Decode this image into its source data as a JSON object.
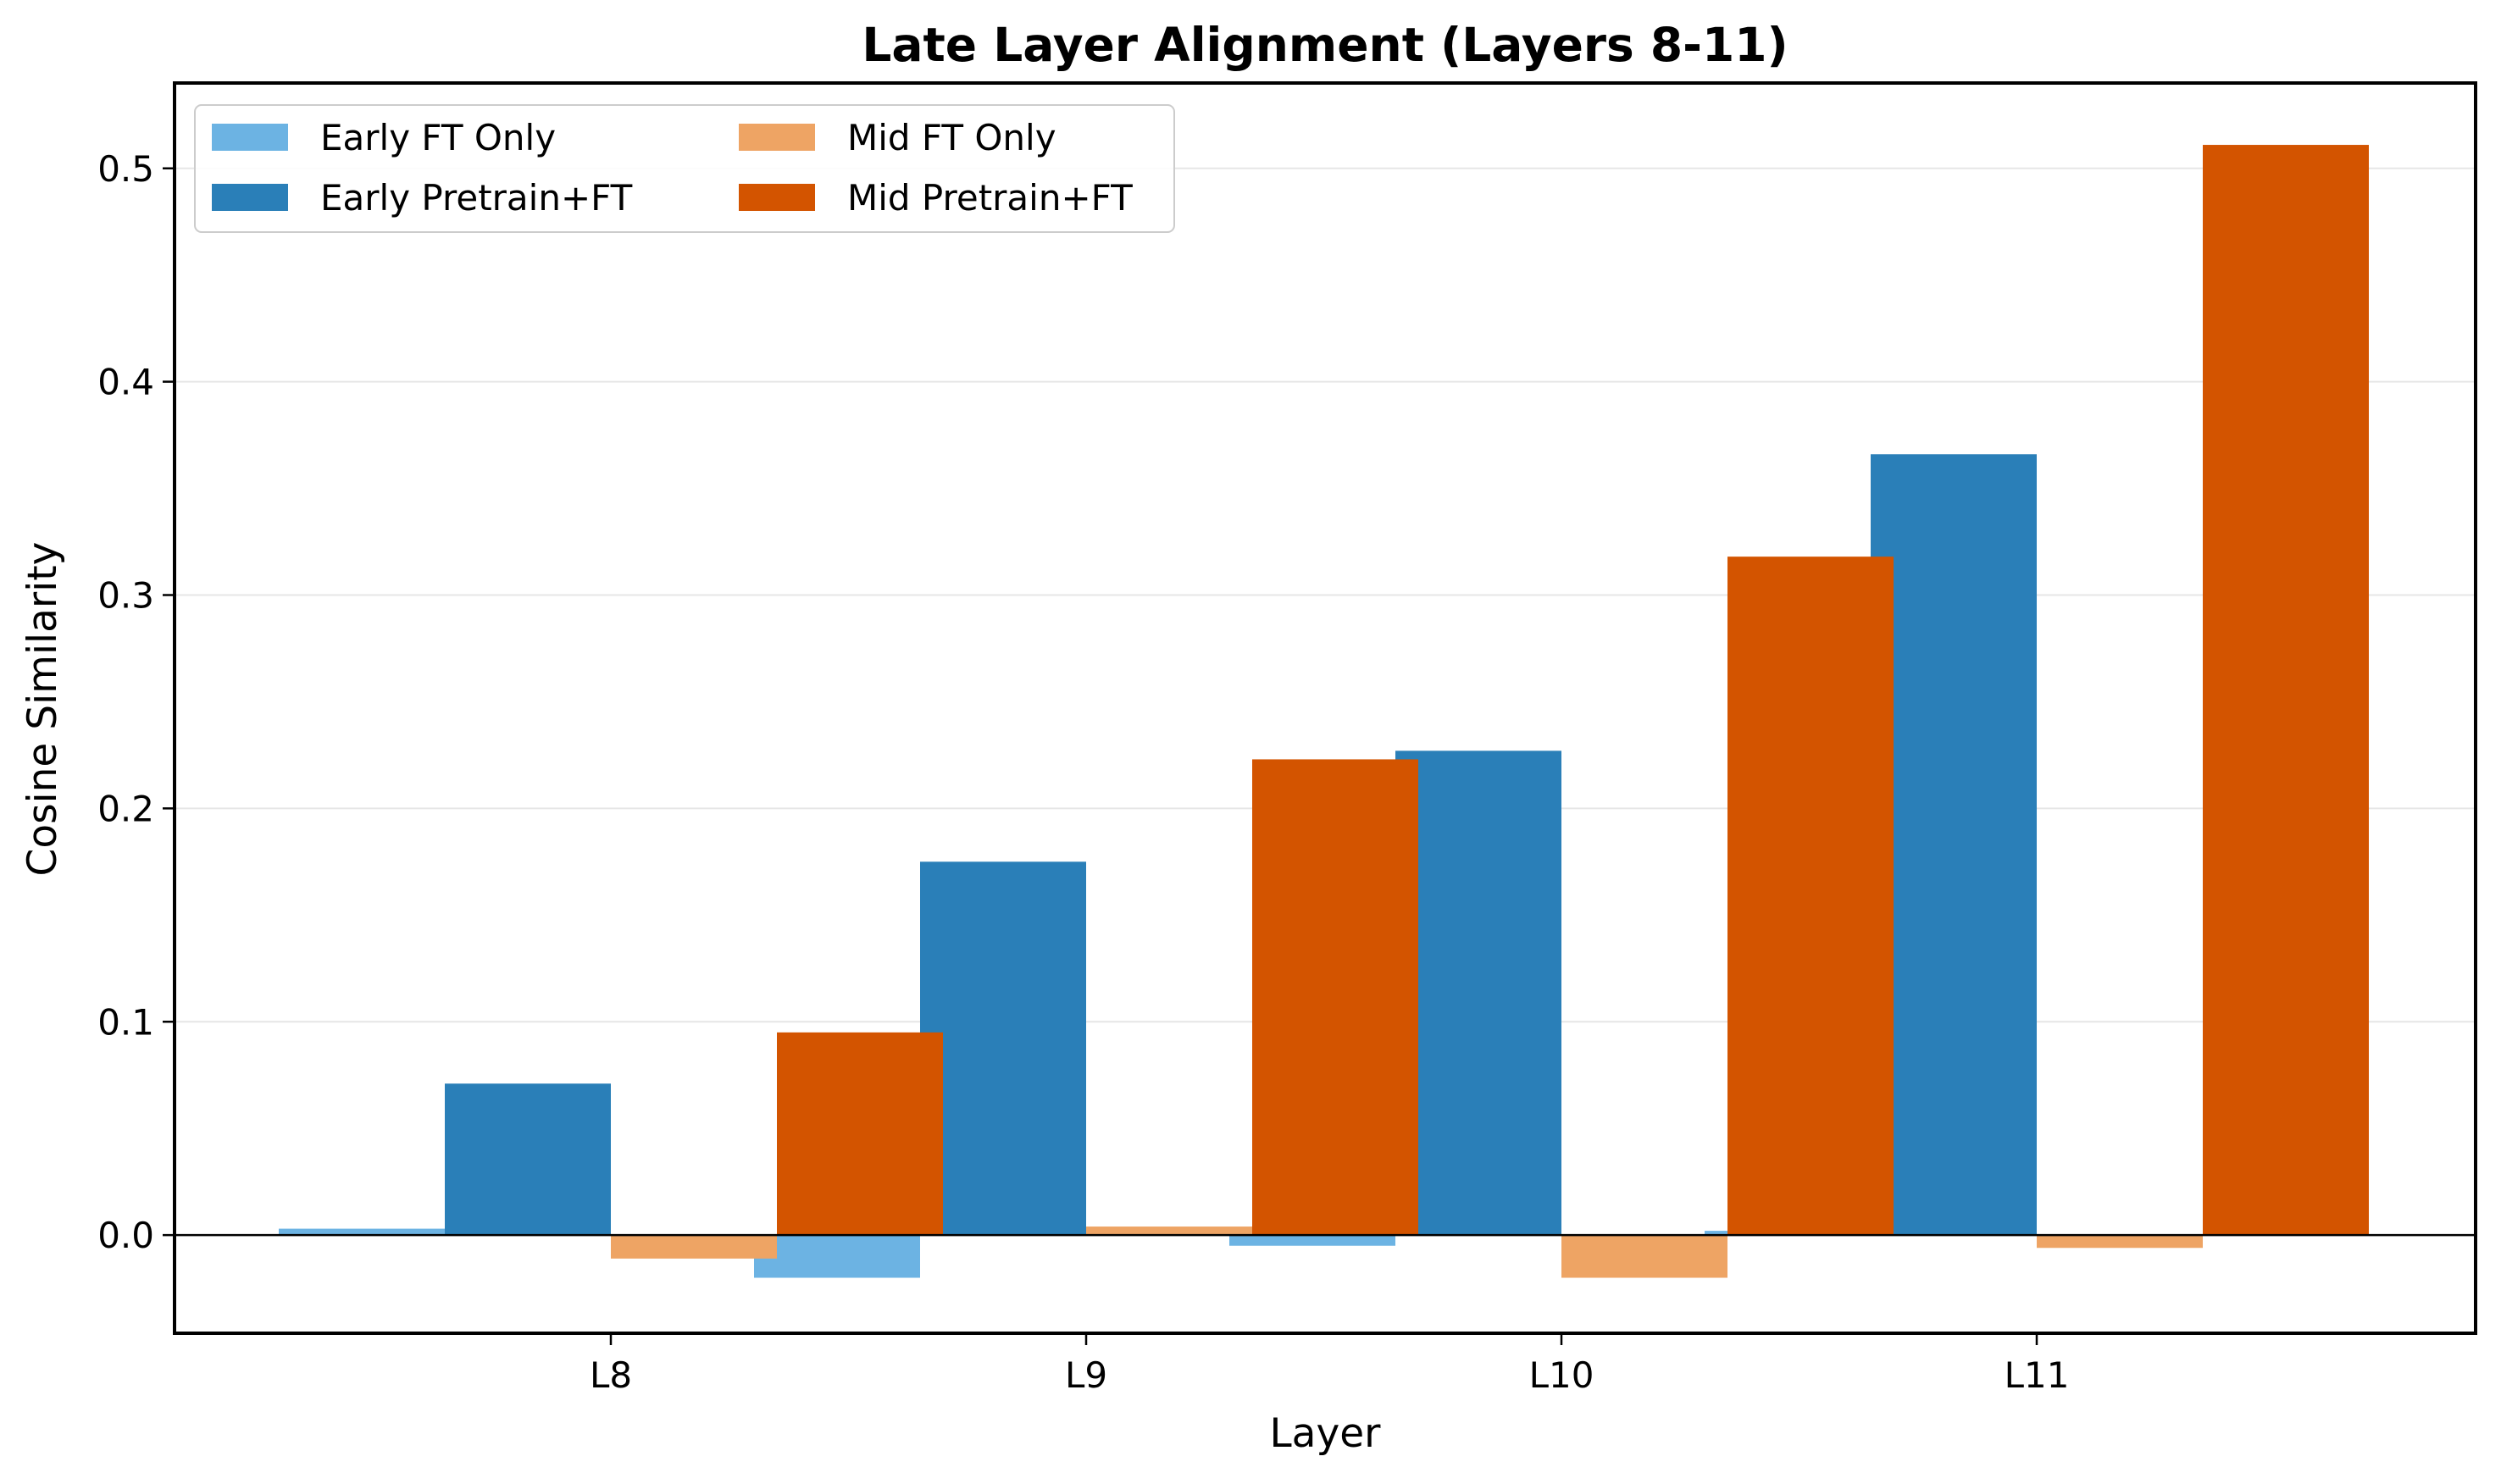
{
  "chart_data": {
    "type": "bar",
    "title": "Late Layer Alignment (Layers 8-11)",
    "xlabel": "Layer",
    "ylabel": "Cosine Similarity",
    "categories": [
      "L8",
      "L9",
      "L10",
      "L11"
    ],
    "ylim": [
      -0.046,
      0.54
    ],
    "yticks": [
      0.0,
      0.1,
      0.2,
      0.3,
      0.4,
      0.5
    ],
    "ytick_labels": [
      "0.0",
      "0.1",
      "0.2",
      "0.3",
      "0.4",
      "0.5"
    ],
    "grid": "y",
    "legend_position": "top-left",
    "series": [
      {
        "name": "Early FT Only",
        "color": "#6cb3e3",
        "values": [
          0.003,
          -0.02,
          -0.005,
          0.002
        ]
      },
      {
        "name": "Early Pretrain+FT",
        "color": "#2a7fb8",
        "values": [
          0.071,
          0.175,
          0.227,
          0.366
        ]
      },
      {
        "name": "Mid FT Only",
        "color": "#eea464",
        "values": [
          -0.011,
          0.004,
          -0.02,
          -0.006
        ]
      },
      {
        "name": "Mid Pretrain+FT",
        "color": "#d35400",
        "values": [
          0.095,
          0.223,
          0.318,
          0.511
        ]
      }
    ]
  }
}
